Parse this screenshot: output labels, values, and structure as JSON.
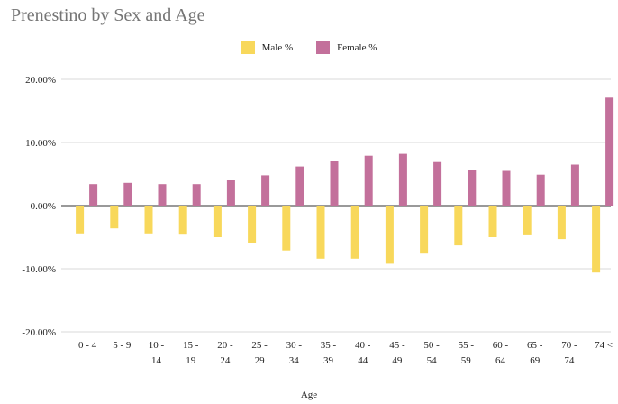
{
  "chart_data": {
    "type": "bar",
    "title": "Prenestino by Sex and Age",
    "xlabel": "Age",
    "ylabel": "",
    "ylim": [
      -20,
      20
    ],
    "yticks": [
      20,
      10,
      0,
      -10,
      -20
    ],
    "ytick_labels": [
      "20.00%",
      "10.00%",
      "0.00%",
      "-10.00%",
      "-20.00%"
    ],
    "grid": "horizontal",
    "legend_position": "top-center",
    "categories": [
      [
        "0 - 4"
      ],
      [
        "5 - 9"
      ],
      [
        "10 -",
        "14"
      ],
      [
        "15 -",
        "19"
      ],
      [
        "20 -",
        "24"
      ],
      [
        "25 -",
        "29"
      ],
      [
        "30 -",
        "34"
      ],
      [
        "35 -",
        "39"
      ],
      [
        "40 -",
        "44"
      ],
      [
        "45 -",
        "49"
      ],
      [
        "50 -",
        "54"
      ],
      [
        "55 -",
        "59"
      ],
      [
        "60 -",
        "64"
      ],
      [
        "65 -",
        "69"
      ],
      [
        "70 -",
        "74"
      ],
      [
        "74 <"
      ]
    ],
    "series": [
      {
        "name": "Male %",
        "color": "#f8d85b",
        "values": [
          -4.4,
          -3.6,
          -4.4,
          -4.6,
          -5.0,
          -5.9,
          -7.1,
          -8.4,
          -8.4,
          -9.2,
          -7.6,
          -6.3,
          -5.0,
          -4.7,
          -5.3,
          -10.6
        ]
      },
      {
        "name": "Female %",
        "color": "#c3709b",
        "values": [
          3.4,
          3.6,
          3.4,
          3.4,
          4.0,
          4.8,
          6.2,
          7.1,
          7.9,
          8.2,
          6.9,
          5.7,
          5.5,
          4.9,
          6.5,
          17.1
        ]
      }
    ]
  }
}
